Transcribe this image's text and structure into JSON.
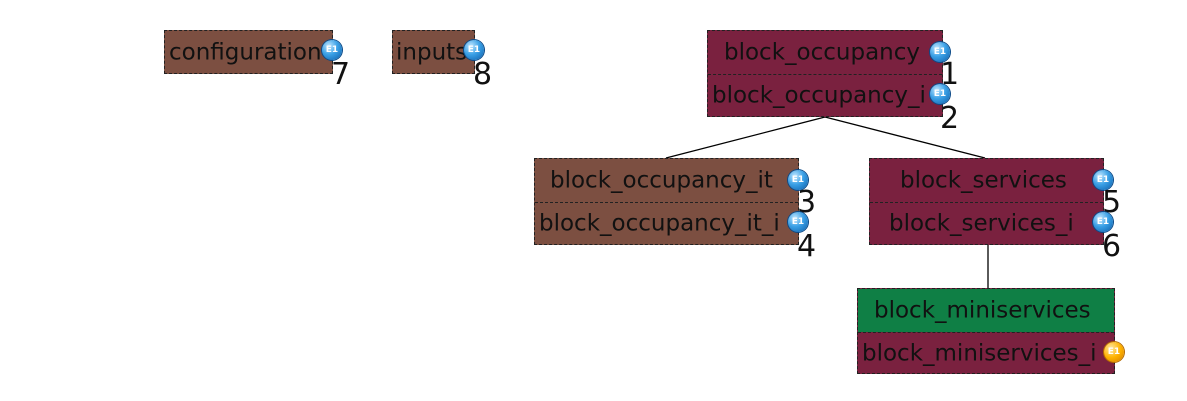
{
  "badge_text": "E1",
  "blocks": {
    "configuration": {
      "label": "configuration",
      "number": "7"
    },
    "inputs": {
      "label": "inputs",
      "number": "8"
    },
    "block_occupancy": {
      "label": "block_occupancy",
      "number": "1",
      "sub_label": "block_occupancy_i",
      "sub_number": "2"
    },
    "block_occupancy_it": {
      "label": "block_occupancy_it",
      "number": "3",
      "sub_label": "block_occupancy_it_i",
      "sub_number": "4"
    },
    "block_services": {
      "label": "block_services",
      "number": "5",
      "sub_label": "block_services_i",
      "sub_number": "6"
    },
    "block_miniservices": {
      "label": "block_miniservices",
      "sub_label": "block_miniservices_i"
    }
  },
  "colors": {
    "brown": "#7c4f41",
    "maroon": "#7a213f",
    "green": "#0f7f45",
    "badge_blue": "#3aa0e6",
    "badge_orange": "#ffb300"
  },
  "icons": {
    "blue_badge": "e1-badge-blue-icon",
    "orange_badge": "e1-badge-orange-icon"
  }
}
